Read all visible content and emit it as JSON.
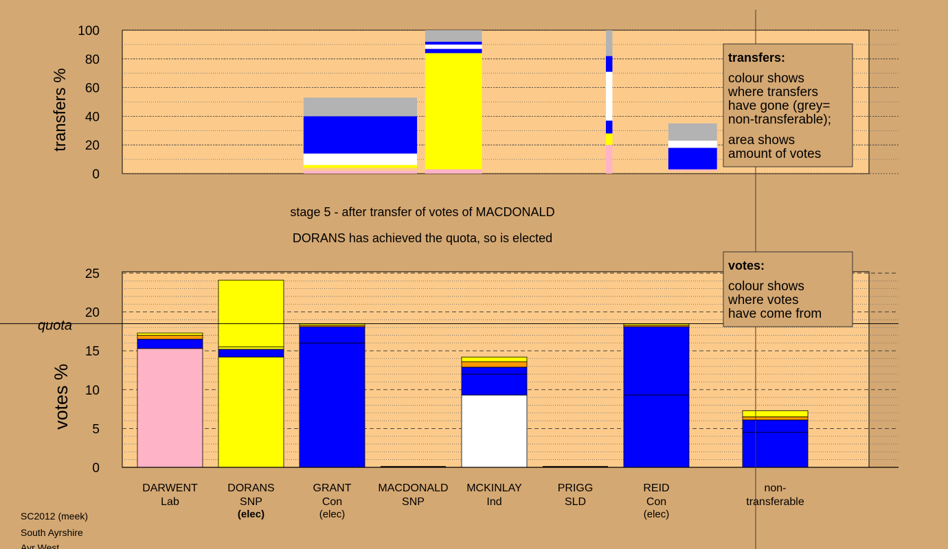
{
  "colors": {
    "background": "#d4a873",
    "plot_bg": "#fccb8b",
    "Lab": "#ffb3c6",
    "SNP": "#ffff00",
    "Con": "#0000ff",
    "Ind": "#ffffff",
    "SLD": "#ff9900",
    "nontransferable": "#b3b3b3"
  },
  "header": {
    "stage_line": "stage 5 - after transfer of votes of MACDONALD",
    "elected_line": "DORANS has achieved the quota, so is elected"
  },
  "footer": {
    "line1": "SC2012 (meek)",
    "line2": "South Ayrshire",
    "line3": "Ayr West"
  },
  "transfers_legend": {
    "title": "transfers:",
    "lines1": [
      "colour shows",
      "where transfers",
      "have gone (grey=",
      "non-transferable);"
    ],
    "lines2": [
      "area shows",
      "amount of votes"
    ]
  },
  "votes_legend": {
    "title": "votes:",
    "lines": [
      "colour shows",
      "where votes",
      "have come from"
    ]
  },
  "candidates": [
    {
      "name": "DARWENT",
      "party": "Lab",
      "status": ""
    },
    {
      "name": "DORANS",
      "party": "SNP",
      "status": "(elec)",
      "status_bold": true
    },
    {
      "name": "GRANT",
      "party": "Con",
      "status": "(elec)"
    },
    {
      "name": "MACDONALD",
      "party": "SNP",
      "status": ""
    },
    {
      "name": "MCKINLAY",
      "party": "Ind",
      "status": ""
    },
    {
      "name": "PRIGG",
      "party": "SLD",
      "status": ""
    },
    {
      "name": "REID",
      "party": "Con",
      "status": "(elec)"
    },
    {
      "name": "non-",
      "party": "transferable",
      "status": ""
    }
  ],
  "chart_data": [
    {
      "type": "bar",
      "ylabel": "transfers %",
      "ylim": [
        0,
        100
      ],
      "yticks": [
        0,
        20,
        40,
        60,
        80,
        100
      ],
      "bars": [
        {
          "x0": 2.05,
          "x1": 3.45,
          "segments": [
            {
              "party": "Lab",
              "from": 0,
              "to": 2
            },
            {
              "party": "SNP",
              "from": 4,
              "to": 6
            },
            {
              "party": "Ind",
              "from": 6,
              "to": 14
            },
            {
              "party": "Con",
              "from": 14,
              "to": 40
            },
            {
              "party": "nontransferable",
              "from": 40,
              "to": 53
            }
          ]
        },
        {
          "x0": 3.55,
          "x1": 4.25,
          "segments": [
            {
              "party": "Lab",
              "from": 0,
              "to": 3
            },
            {
              "party": "SNP",
              "from": 3,
              "to": 84
            },
            {
              "party": "Con",
              "from": 84,
              "to": 87
            },
            {
              "party": "Ind",
              "from": 87,
              "to": 90
            },
            {
              "party": "Con",
              "from": 90,
              "to": 92
            },
            {
              "party": "nontransferable",
              "from": 92,
              "to": 100
            }
          ]
        },
        {
          "x0": 5.78,
          "x1": 5.86,
          "segments": [
            {
              "party": "Lab",
              "from": 0,
              "to": 20
            },
            {
              "party": "SNP",
              "from": 20,
              "to": 28
            },
            {
              "party": "Con",
              "from": 28,
              "to": 37
            },
            {
              "party": "Ind",
              "from": 37,
              "to": 71
            },
            {
              "party": "Con",
              "from": 71,
              "to": 82
            },
            {
              "party": "nontransferable",
              "from": 82,
              "to": 100
            }
          ]
        },
        {
          "x0": 6.55,
          "x1": 7.15,
          "segments": [
            {
              "party": "Lab",
              "from": 2,
              "to": 3
            },
            {
              "party": "Con",
              "from": 3,
              "to": 18
            },
            {
              "party": "Ind",
              "from": 18,
              "to": 23
            },
            {
              "party": "nontransferable",
              "from": 23,
              "to": 35
            }
          ]
        }
      ]
    },
    {
      "type": "bar",
      "ylabel": "votes %",
      "ylim": [
        0,
        25
      ],
      "yticks": [
        0,
        5,
        10,
        15,
        20,
        25
      ],
      "quota": 18.5,
      "quota_label": "quota",
      "categories": [
        "DARWENT",
        "DORANS",
        "GRANT",
        "MACDONALD",
        "MCKINLAY",
        "PRIGG",
        "REID",
        "non-transferable"
      ],
      "bars": [
        {
          "index": 0,
          "segments": [
            {
              "party": "Lab",
              "from": 0,
              "to": 15.3
            },
            {
              "party": "Con",
              "from": 15.3,
              "to": 16.5
            },
            {
              "party": "SLD",
              "from": 16.5,
              "to": 17.0
            },
            {
              "party": "SNP",
              "from": 17.0,
              "to": 17.3
            }
          ]
        },
        {
          "index": 1,
          "segments": [
            {
              "party": "SNP",
              "from": 0,
              "to": 14.2
            },
            {
              "party": "Con",
              "from": 14.2,
              "to": 15.2
            },
            {
              "party": "SNP",
              "from": 15.2,
              "to": 15.5
            },
            {
              "party": "SNP",
              "from": 15.5,
              "to": 24.1
            }
          ]
        },
        {
          "index": 2,
          "segments": [
            {
              "party": "Con",
              "from": 0,
              "to": 16.0
            },
            {
              "party": "Con",
              "from": 16.0,
              "to": 18.1
            },
            {
              "party": "SLD",
              "from": 18.1,
              "to": 18.3
            },
            {
              "party": "SNP",
              "from": 18.3,
              "to": 18.5
            }
          ]
        },
        {
          "index": 4,
          "segments": [
            {
              "party": "Ind",
              "from": 0,
              "to": 9.3
            },
            {
              "party": "Con",
              "from": 9.3,
              "to": 12.0
            },
            {
              "party": "Con",
              "from": 12.0,
              "to": 12.9
            },
            {
              "party": "SLD",
              "from": 12.9,
              "to": 13.6
            },
            {
              "party": "SNP",
              "from": 13.6,
              "to": 14.2
            }
          ]
        },
        {
          "index": 6,
          "segments": [
            {
              "party": "Con",
              "from": 0,
              "to": 9.3
            },
            {
              "party": "Con",
              "from": 9.3,
              "to": 18.1
            },
            {
              "party": "SLD",
              "from": 18.1,
              "to": 18.3
            },
            {
              "party": "SNP",
              "from": 18.3,
              "to": 18.5
            }
          ]
        },
        {
          "index": 7,
          "segments": [
            {
              "party": "Con",
              "from": 0,
              "to": 4.5
            },
            {
              "party": "Con",
              "from": 4.5,
              "to": 6.1
            },
            {
              "party": "SLD",
              "from": 6.1,
              "to": 6.5
            },
            {
              "party": "SNP",
              "from": 6.5,
              "to": 7.3
            }
          ]
        }
      ]
    }
  ]
}
